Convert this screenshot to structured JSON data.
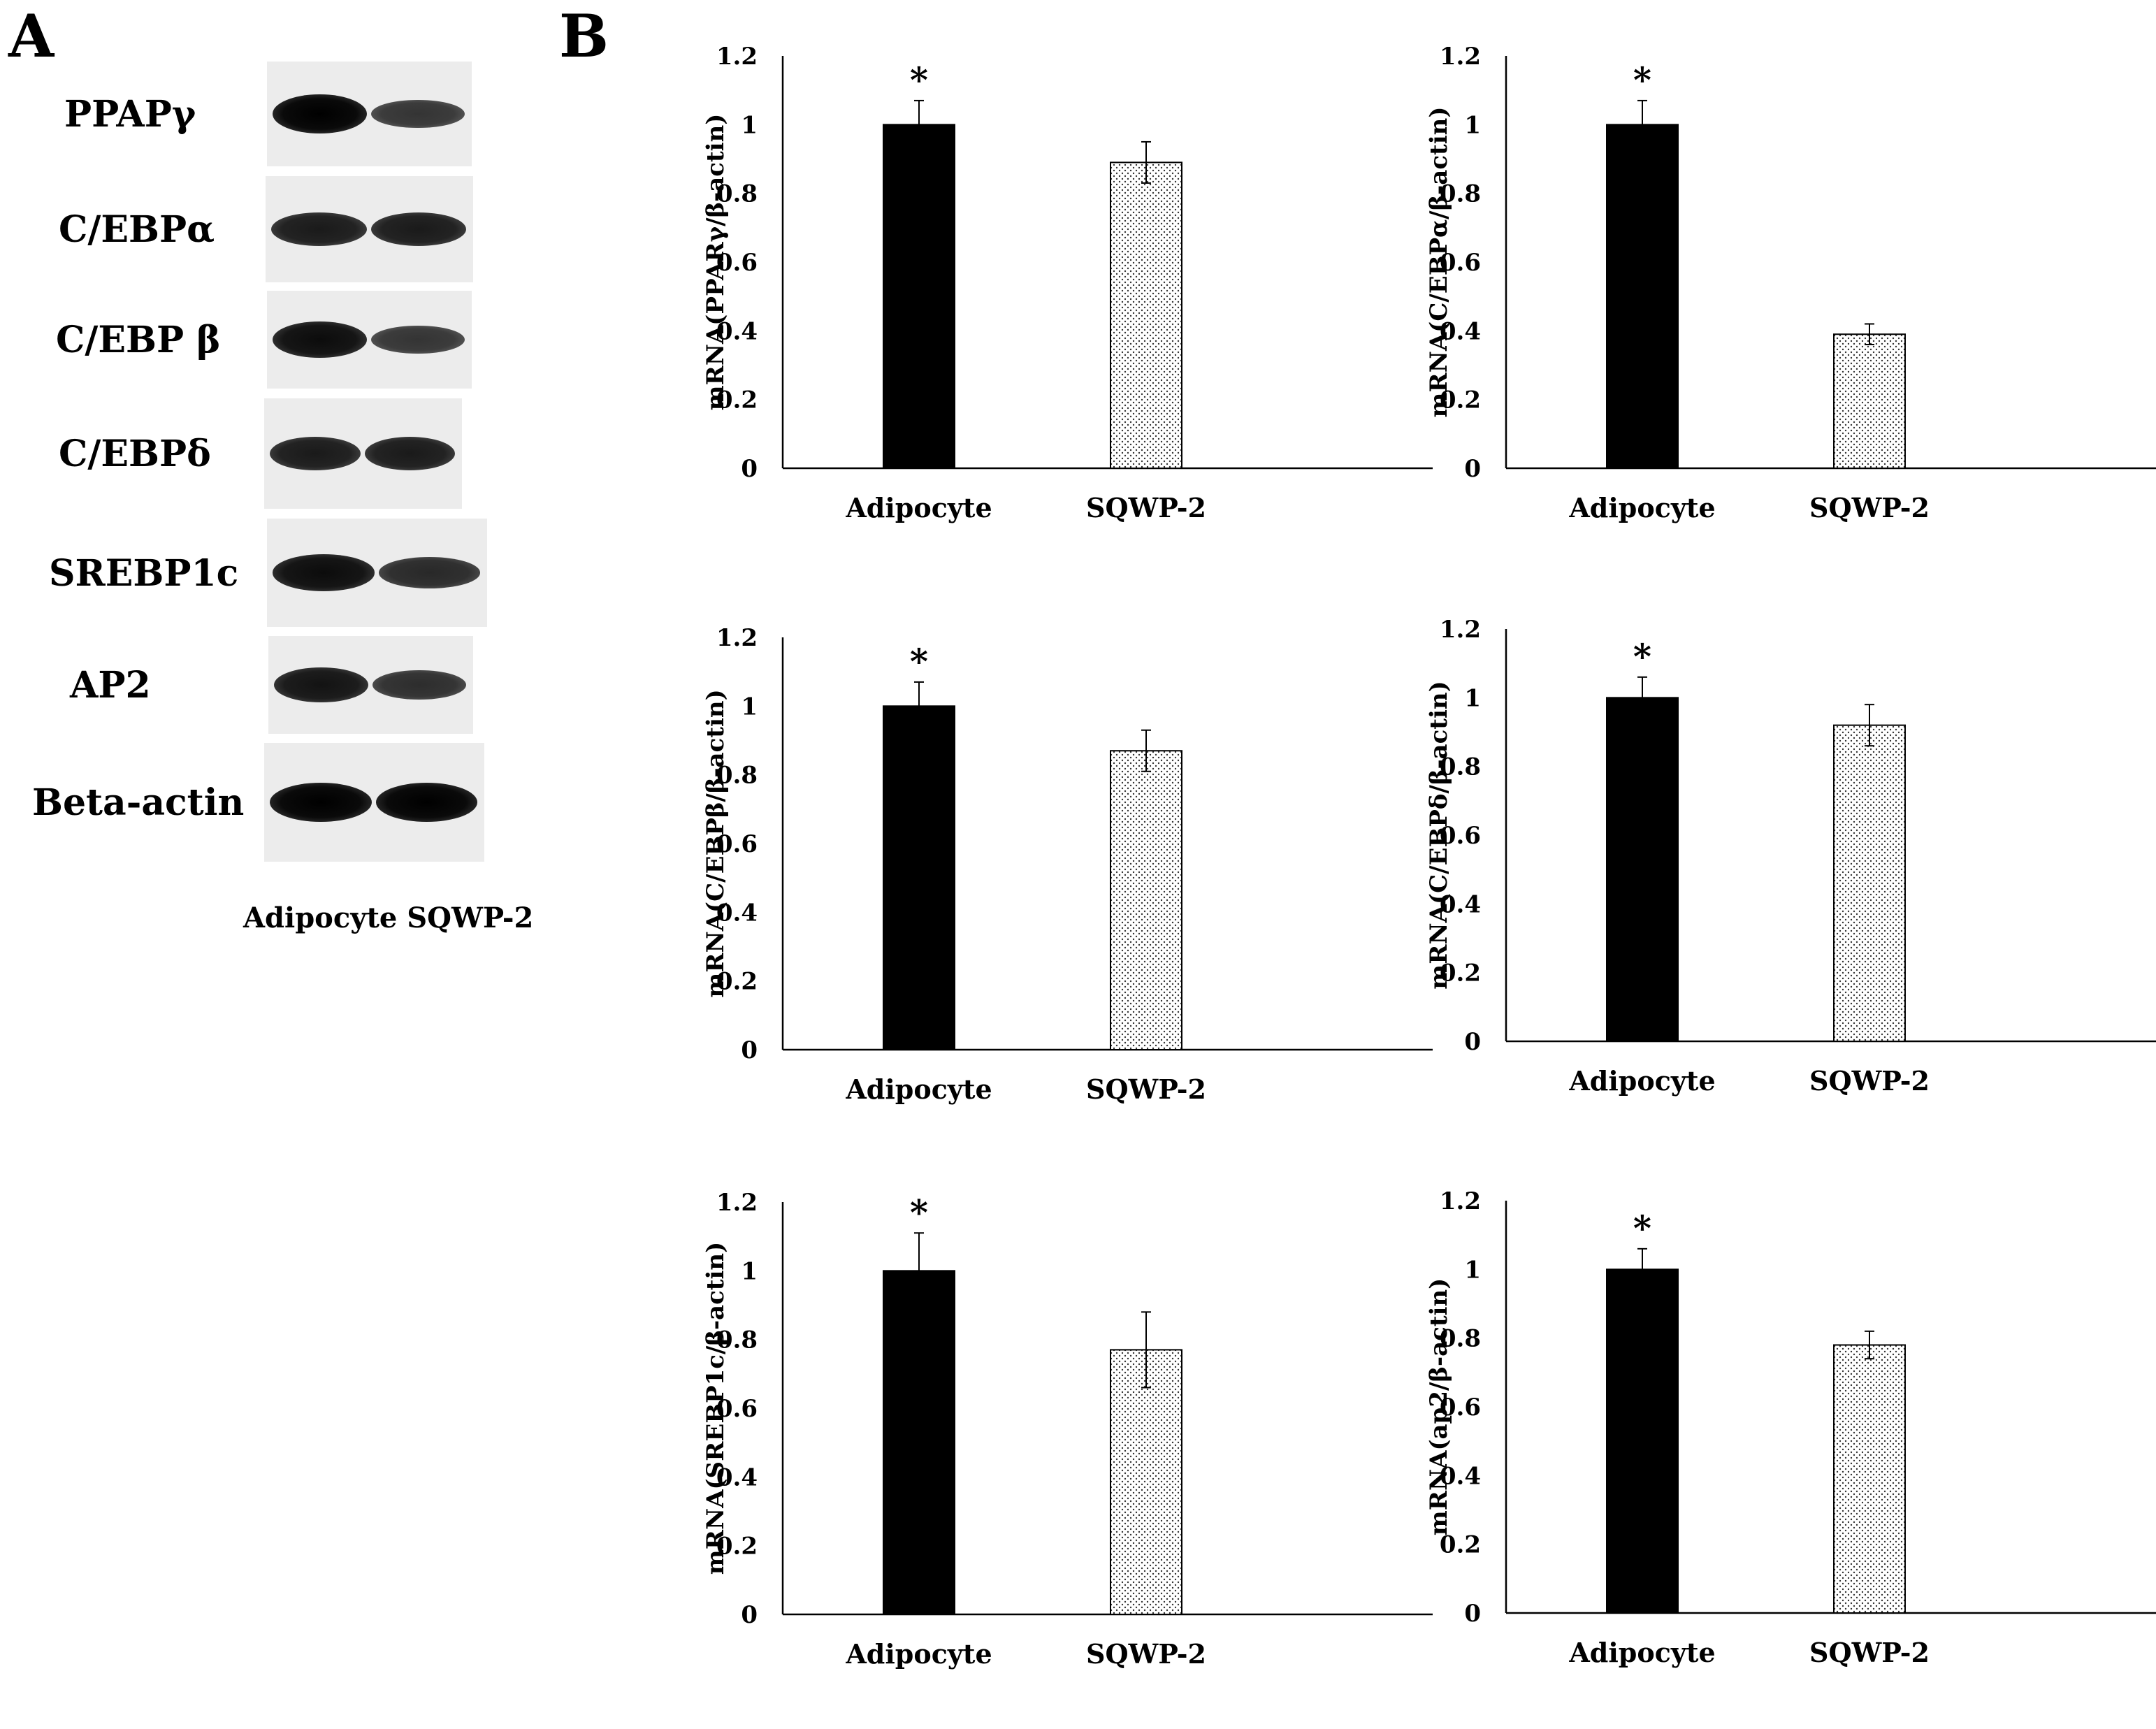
{
  "panels": {
    "a": "A",
    "b": "B"
  },
  "western_blot": {
    "proteins": [
      {
        "name": "PPAPγ",
        "adipocyte_intensity": 1.0,
        "sqwp2_intensity": 0.6
      },
      {
        "name": "C/EBPα",
        "adipocyte_intensity": 0.8,
        "sqwp2_intensity": 0.8
      },
      {
        "name": "C/EBP β",
        "adipocyte_intensity": 0.9,
        "sqwp2_intensity": 0.6
      },
      {
        "name": "C/EBPδ",
        "adipocyte_intensity": 0.8,
        "sqwp2_intensity": 0.8
      },
      {
        "name": "SREBP1c",
        "adipocyte_intensity": 0.9,
        "sqwp2_intensity": 0.7
      },
      {
        "name": "AP2",
        "adipocyte_intensity": 0.85,
        "sqwp2_intensity": 0.65
      },
      {
        "name": "Beta-actin",
        "adipocyte_intensity": 1.0,
        "sqwp2_intensity": 1.0
      }
    ],
    "lane_labels": "Adipocyte SQWP-2"
  },
  "chart_data": [
    {
      "type": "bar",
      "categories": [
        "Adipocyte",
        "SQWP-2"
      ],
      "values": [
        1.0,
        0.89
      ],
      "errors": [
        0.07,
        0.06
      ],
      "significance": [
        "*",
        ""
      ],
      "ylabel": "mRNA(PPARγ/β-actin)",
      "ylim": [
        0,
        1.2
      ],
      "yticks": [
        "0",
        "0.2",
        "0.4",
        "0.6",
        "0.8",
        "1",
        "1.2"
      ]
    },
    {
      "type": "bar",
      "categories": [
        "Adipocyte",
        "SQWP-2"
      ],
      "values": [
        1.0,
        0.39
      ],
      "errors": [
        0.07,
        0.03
      ],
      "significance": [
        "*",
        ""
      ],
      "ylabel": "mRNA(C/EBPα/β-actin)",
      "ylim": [
        0,
        1.2
      ],
      "yticks": [
        "0",
        "0.2",
        "0.4",
        "0.6",
        "0.8",
        "1",
        "1.2"
      ]
    },
    {
      "type": "bar",
      "categories": [
        "Adipocyte",
        "SQWP-2"
      ],
      "values": [
        1.0,
        0.87
      ],
      "errors": [
        0.07,
        0.06
      ],
      "significance": [
        "*",
        ""
      ],
      "ylabel": "mRNA(C/EBPβ/β-actin)",
      "ylim": [
        0,
        1.2
      ],
      "yticks": [
        "0",
        "0.2",
        "0.4",
        "0.6",
        "0.8",
        "1",
        "1.2"
      ]
    },
    {
      "type": "bar",
      "categories": [
        "Adipocyte",
        "SQWP-2"
      ],
      "values": [
        1.0,
        0.92
      ],
      "errors": [
        0.06,
        0.06
      ],
      "significance": [
        "*",
        ""
      ],
      "ylabel": "mRNA(C/EBPδ/β-actin)",
      "ylim": [
        0,
        1.2
      ],
      "yticks": [
        "0",
        "0.2",
        "0.4",
        "0.6",
        "0.8",
        "1",
        "1.2"
      ]
    },
    {
      "type": "bar",
      "categories": [
        "Adipocyte",
        "SQWP-2"
      ],
      "values": [
        1.0,
        0.77
      ],
      "errors": [
        0.11,
        0.11
      ],
      "significance": [
        "*",
        ""
      ],
      "ylabel": "mRNA(SREBP1c/β-actin)",
      "ylim": [
        0,
        1.2
      ],
      "yticks": [
        "0",
        "0.2",
        "0.4",
        "0.6",
        "0.8",
        "1",
        "1.2"
      ]
    },
    {
      "type": "bar",
      "categories": [
        "Adipocyte",
        "SQWP-2"
      ],
      "values": [
        1.0,
        0.78
      ],
      "errors": [
        0.06,
        0.04
      ],
      "significance": [
        "*",
        ""
      ],
      "ylabel": "mRNA(ap2/β-actin)",
      "ylim": [
        0,
        1.2
      ],
      "yticks": [
        "0",
        "0.2",
        "0.4",
        "0.6",
        "0.8",
        "1",
        "1.2"
      ]
    }
  ],
  "colors": {
    "adipocyte_bar": "#000000",
    "sqwp2_bar": "#ffffff",
    "axis": "#000000"
  }
}
